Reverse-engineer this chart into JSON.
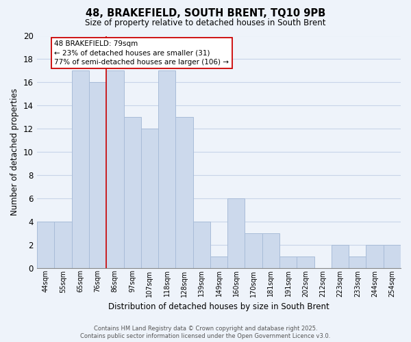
{
  "title": "48, BRAKEFIELD, SOUTH BRENT, TQ10 9PB",
  "subtitle": "Size of property relative to detached houses in South Brent",
  "xlabel": "Distribution of detached houses by size in South Brent",
  "ylabel": "Number of detached properties",
  "bar_labels": [
    "44sqm",
    "55sqm",
    "65sqm",
    "76sqm",
    "86sqm",
    "97sqm",
    "107sqm",
    "118sqm",
    "128sqm",
    "139sqm",
    "149sqm",
    "160sqm",
    "170sqm",
    "181sqm",
    "191sqm",
    "202sqm",
    "212sqm",
    "223sqm",
    "233sqm",
    "244sqm",
    "254sqm"
  ],
  "bar_values": [
    4,
    4,
    17,
    16,
    17,
    13,
    12,
    17,
    13,
    4,
    1,
    6,
    3,
    3,
    1,
    1,
    0,
    2,
    1,
    2,
    2
  ],
  "bar_color": "#ccd9ec",
  "bar_edge_color": "#a8bcd8",
  "grid_color": "#c8d4e8",
  "vline_x_index": 3,
  "vline_color": "#cc0000",
  "annotation_line1": "48 BRAKEFIELD: 79sqm",
  "annotation_line2": "← 23% of detached houses are smaller (31)",
  "annotation_line3": "77% of semi-detached houses are larger (106) →",
  "annotation_box_color": "#ffffff",
  "annotation_box_edge": "#cc0000",
  "ylim": [
    0,
    20
  ],
  "yticks": [
    0,
    2,
    4,
    6,
    8,
    10,
    12,
    14,
    16,
    18,
    20
  ],
  "footer1": "Contains HM Land Registry data © Crown copyright and database right 2025.",
  "footer2": "Contains public sector information licensed under the Open Government Licence v3.0.",
  "bg_color": "#eef3fa",
  "plot_bg_color": "#eef3fa",
  "title_fontsize": 10.5,
  "subtitle_fontsize": 8.5
}
